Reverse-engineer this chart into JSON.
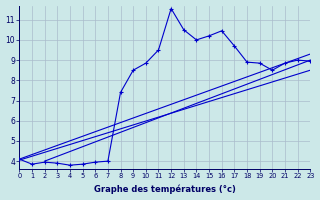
{
  "xlabel": "Graphe des températures (°c)",
  "background_color": "#cce8e8",
  "grid_color": "#aabccc",
  "line_color": "#0000cc",
  "xlim": [
    0,
    23
  ],
  "ylim": [
    3.6,
    11.7
  ],
  "xticks": [
    0,
    1,
    2,
    3,
    4,
    5,
    6,
    7,
    8,
    9,
    10,
    11,
    12,
    13,
    14,
    15,
    16,
    17,
    18,
    19,
    20,
    21,
    22,
    23
  ],
  "yticks": [
    4,
    5,
    6,
    7,
    8,
    9,
    10,
    11
  ],
  "hours": [
    0,
    1,
    2,
    3,
    4,
    5,
    6,
    7,
    8,
    9,
    10,
    11,
    12,
    13,
    14,
    15,
    16,
    17,
    18,
    19,
    20,
    21,
    22,
    23
  ],
  "temps": [
    4.1,
    3.85,
    3.95,
    3.9,
    3.8,
    3.85,
    3.95,
    4.0,
    7.4,
    8.5,
    8.85,
    9.5,
    11.55,
    10.5,
    10.0,
    10.2,
    10.45,
    9.7,
    8.9,
    8.85,
    8.5,
    8.85,
    9.0,
    8.95
  ],
  "trend_lines": [
    {
      "x": [
        0,
        23
      ],
      "y": [
        4.05,
        8.5
      ]
    },
    {
      "x": [
        2,
        23
      ],
      "y": [
        4.0,
        9.0
      ]
    },
    {
      "x": [
        0,
        23
      ],
      "y": [
        4.1,
        9.3
      ]
    }
  ]
}
